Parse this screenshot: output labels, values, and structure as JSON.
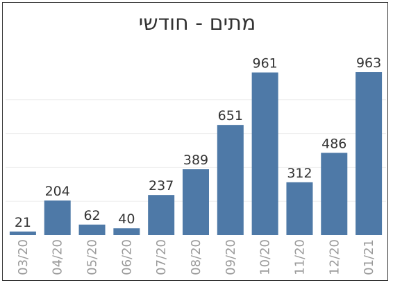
{
  "chart_data": {
    "type": "bar",
    "title": "מתים - חודשי",
    "categories": [
      "03/20",
      "04/20",
      "05/20",
      "06/20",
      "07/20",
      "08/20",
      "09/20",
      "10/20",
      "11/20",
      "12/20",
      "01/21"
    ],
    "values": [
      21,
      204,
      62,
      40,
      237,
      389,
      651,
      961,
      312,
      486,
      963
    ],
    "ylim": [
      0,
      1000
    ],
    "grid": true,
    "bar_color": "#4e79a7",
    "label_color": "#333333",
    "tick_color": "#9a9a9a",
    "grid_color": "#eeeeee"
  }
}
